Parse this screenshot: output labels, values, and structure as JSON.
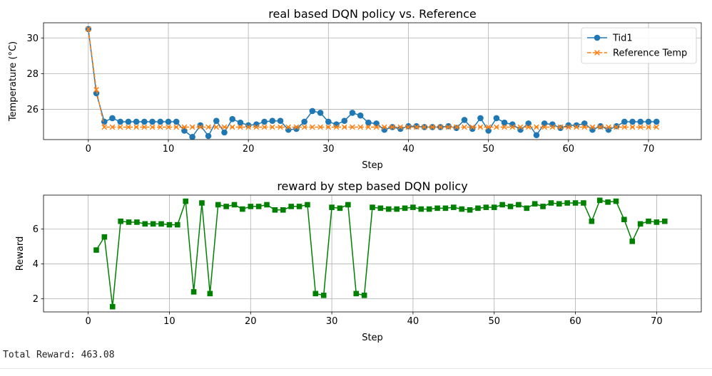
{
  "chart_data": [
    {
      "type": "line",
      "title": "real based DQN policy vs. Reference",
      "xlabel": "Step",
      "ylabel": "Temperature (°C)",
      "xlim": [
        -5.6,
        76.6
      ],
      "ylim": [
        24.3,
        30.85
      ],
      "xticks": [
        0,
        10,
        20,
        30,
        40,
        50,
        60,
        70
      ],
      "yticks": [
        26,
        28,
        30
      ],
      "grid": true,
      "legend": "top-right",
      "series": [
        {
          "name": "Tid1",
          "color": "#1f77b4",
          "marker": "circle",
          "x": [
            0,
            1,
            2,
            3,
            4,
            5,
            6,
            7,
            8,
            9,
            10,
            11,
            12,
            13,
            14,
            15,
            16,
            17,
            18,
            19,
            20,
            21,
            22,
            23,
            24,
            25,
            26,
            27,
            28,
            29,
            30,
            31,
            32,
            33,
            34,
            35,
            36,
            37,
            38,
            39,
            40,
            41,
            42,
            43,
            44,
            45,
            46,
            47,
            48,
            49,
            50,
            51,
            52,
            53,
            54,
            55,
            56,
            57,
            58,
            59,
            60,
            61,
            62,
            63,
            64,
            65,
            66,
            67,
            68,
            69,
            70,
            71
          ],
          "values": [
            30.5,
            26.9,
            25.3,
            25.5,
            25.3,
            25.3,
            25.3,
            25.3,
            25.3,
            25.3,
            25.3,
            25.3,
            24.8,
            24.45,
            25.1,
            24.5,
            25.35,
            24.7,
            25.45,
            25.25,
            25.1,
            25.15,
            25.3,
            25.35,
            25.35,
            24.85,
            24.9,
            25.3,
            25.9,
            25.8,
            25.3,
            25.15,
            25.35,
            25.8,
            25.65,
            25.25,
            25.2,
            24.85,
            25.0,
            24.9,
            25.05,
            25.05,
            25.0,
            25.0,
            25.0,
            25.05,
            24.95,
            25.4,
            24.9,
            25.5,
            24.8,
            25.5,
            25.25,
            25.15,
            24.85,
            25.2,
            24.55,
            25.2,
            25.15,
            24.95,
            25.1,
            25.1,
            25.2,
            24.85,
            25.05,
            24.85,
            25.05,
            25.3,
            25.3,
            25.3,
            25.3,
            25.3
          ]
        },
        {
          "name": "Reference Temp",
          "color": "#ff7f0e",
          "marker": "x",
          "dashed": true,
          "x": [
            0,
            1,
            2,
            3,
            4,
            5,
            6,
            7,
            8,
            9,
            10,
            11,
            12,
            13,
            14,
            15,
            16,
            17,
            18,
            19,
            20,
            21,
            22,
            23,
            24,
            25,
            26,
            27,
            28,
            29,
            30,
            31,
            32,
            33,
            34,
            35,
            36,
            37,
            38,
            39,
            40,
            41,
            42,
            43,
            44,
            45,
            46,
            47,
            48,
            49,
            50,
            51,
            52,
            53,
            54,
            55,
            56,
            57,
            58,
            59,
            60,
            61,
            62,
            63,
            64,
            65,
            66,
            67,
            68,
            69,
            70,
            71
          ],
          "values": [
            30.5,
            27.1,
            25.0,
            25.0,
            25.0,
            25.0,
            25.0,
            25.0,
            25.0,
            25.0,
            25.0,
            25.0,
            25.0,
            25.0,
            25.0,
            25.0,
            25.0,
            25.0,
            25.0,
            25.0,
            25.0,
            25.0,
            25.0,
            25.0,
            25.0,
            25.0,
            25.0,
            25.0,
            25.0,
            25.0,
            25.0,
            25.0,
            25.0,
            25.0,
            25.0,
            25.0,
            25.0,
            25.0,
            25.0,
            25.0,
            25.0,
            25.0,
            25.0,
            25.0,
            25.0,
            25.0,
            25.0,
            25.0,
            25.0,
            25.0,
            25.0,
            25.0,
            25.0,
            25.0,
            25.0,
            25.0,
            25.0,
            25.0,
            25.0,
            25.0,
            25.0,
            25.0,
            25.0,
            25.0,
            25.0,
            25.0,
            25.0,
            25.0,
            25.0,
            25.0,
            25.0,
            25.0
          ]
        }
      ]
    },
    {
      "type": "line",
      "title": "reward by step based DQN policy",
      "xlabel": "Step",
      "ylabel": "Reward",
      "xlim": [
        -5.5,
        75.5
      ],
      "ylim": [
        1.25,
        7.95
      ],
      "xticks": [
        0,
        10,
        20,
        30,
        40,
        50,
        60,
        70
      ],
      "yticks": [
        2,
        4,
        6
      ],
      "grid": true,
      "series": [
        {
          "color": "#008000",
          "marker": "square",
          "x": [
            1,
            2,
            3,
            4,
            5,
            6,
            7,
            8,
            9,
            10,
            11,
            12,
            13,
            14,
            15,
            16,
            17,
            18,
            19,
            20,
            21,
            22,
            23,
            24,
            25,
            26,
            27,
            28,
            29,
            30,
            31,
            32,
            33,
            34,
            35,
            36,
            37,
            38,
            39,
            40,
            41,
            42,
            43,
            44,
            45,
            46,
            47,
            48,
            49,
            50,
            51,
            52,
            53,
            54,
            55,
            56,
            57,
            58,
            59,
            60,
            61,
            62,
            63,
            64,
            65,
            66,
            67,
            68,
            69,
            70,
            71
          ],
          "values": [
            4.8,
            5.55,
            1.55,
            6.45,
            6.4,
            6.4,
            6.3,
            6.3,
            6.3,
            6.25,
            6.25,
            7.6,
            2.4,
            7.5,
            2.3,
            7.4,
            7.3,
            7.4,
            7.15,
            7.3,
            7.3,
            7.4,
            7.1,
            7.1,
            7.3,
            7.3,
            7.4,
            2.3,
            2.2,
            7.25,
            7.2,
            7.4,
            2.3,
            2.2,
            7.25,
            7.2,
            7.15,
            7.15,
            7.2,
            7.25,
            7.15,
            7.15,
            7.2,
            7.2,
            7.25,
            7.15,
            7.1,
            7.2,
            7.25,
            7.25,
            7.4,
            7.3,
            7.4,
            7.2,
            7.45,
            7.3,
            7.5,
            7.45,
            7.5,
            7.5,
            7.5,
            6.45,
            7.65,
            7.55,
            7.6,
            6.55,
            5.3,
            6.3,
            6.45,
            6.4,
            6.45
          ]
        }
      ]
    }
  ],
  "output": {
    "total_reward_label": "Total Reward: 463.08"
  }
}
